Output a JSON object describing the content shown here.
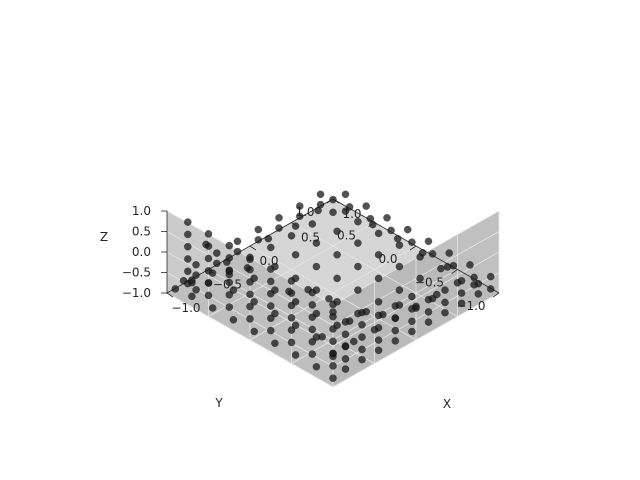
{
  "chart_data": {
    "type": "scatter",
    "projection": "3d",
    "title": "",
    "xlabel": "X",
    "ylabel": "Y",
    "zlabel": "Z",
    "xlim": [
      -1.0,
      1.0
    ],
    "ylim": [
      -1.0,
      1.0
    ],
    "zlim": [
      -1.0,
      1.0
    ],
    "x_ticks": [
      "−1.0",
      "−0.5",
      "0.0",
      "0.5",
      "1.0"
    ],
    "y_ticks": [
      "−1.0",
      "−0.5",
      "0.0",
      "0.5",
      "1.0"
    ],
    "z_ticks": [
      "−1.0",
      "−0.5",
      "0.0",
      "0.5",
      "1.0"
    ],
    "x_tick_values": [
      -1.0,
      -0.5,
      0.0,
      0.5,
      1.0
    ],
    "y_tick_values": [
      -1.0,
      -0.5,
      0.0,
      0.5,
      1.0
    ],
    "z_tick_values": [
      -1.0,
      -0.5,
      0.0,
      0.5,
      1.0
    ],
    "grid": true,
    "view": {
      "elev": 45,
      "azim": 45
    },
    "pane_color": "#b5b5b5",
    "point_color": "#1a1a1a",
    "point_alpha": 0.75,
    "series": [
      {
        "points": [
          [
            -0.95,
            -0.95,
            -0.9
          ],
          [
            -0.8,
            -0.95,
            -0.85
          ],
          [
            -0.6,
            -0.95,
            -0.85
          ],
          [
            -0.4,
            -0.95,
            -0.85
          ],
          [
            -0.2,
            -0.95,
            -0.85
          ],
          [
            0.0,
            -0.95,
            -0.85
          ],
          [
            0.2,
            -0.95,
            -0.85
          ],
          [
            0.4,
            -0.95,
            -0.85
          ],
          [
            0.6,
            -0.95,
            -0.85
          ],
          [
            0.8,
            -0.95,
            -0.85
          ],
          [
            0.95,
            -0.95,
            -0.9
          ],
          [
            -0.95,
            -0.75,
            -0.85
          ],
          [
            -0.75,
            -0.75,
            -0.75
          ],
          [
            -0.5,
            -0.75,
            -0.75
          ],
          [
            -0.25,
            -0.75,
            -0.75
          ],
          [
            0.0,
            -0.75,
            -0.75
          ],
          [
            0.25,
            -0.75,
            -0.75
          ],
          [
            0.5,
            -0.75,
            -0.75
          ],
          [
            0.75,
            -0.75,
            -0.75
          ],
          [
            0.95,
            -0.75,
            -0.85
          ],
          [
            -0.95,
            -0.5,
            -0.85
          ],
          [
            -0.7,
            -0.5,
            -0.7
          ],
          [
            -0.45,
            -0.5,
            -0.7
          ],
          [
            -0.2,
            -0.5,
            -0.7
          ],
          [
            0.05,
            -0.5,
            -0.7
          ],
          [
            0.3,
            -0.5,
            -0.7
          ],
          [
            0.55,
            -0.5,
            -0.7
          ],
          [
            0.8,
            -0.5,
            -0.75
          ],
          [
            0.95,
            -0.5,
            -0.85
          ],
          [
            -0.95,
            -0.25,
            -0.85
          ],
          [
            -0.7,
            -0.25,
            -0.7
          ],
          [
            -0.45,
            -0.25,
            -0.7
          ],
          [
            -0.2,
            -0.25,
            -0.7
          ],
          [
            0.05,
            -0.25,
            -0.7
          ],
          [
            0.3,
            -0.25,
            -0.7
          ],
          [
            0.55,
            -0.25,
            -0.7
          ],
          [
            0.8,
            -0.25,
            -0.75
          ],
          [
            0.95,
            -0.25,
            -0.85
          ],
          [
            -0.95,
            0.0,
            -0.85
          ],
          [
            -0.7,
            0.0,
            -0.7
          ],
          [
            -0.45,
            0.0,
            -0.7
          ],
          [
            -0.2,
            0.0,
            -0.7
          ],
          [
            0.05,
            0.0,
            -0.7
          ],
          [
            0.3,
            0.0,
            -0.7
          ],
          [
            0.55,
            0.0,
            -0.7
          ],
          [
            0.8,
            0.0,
            -0.75
          ],
          [
            0.95,
            0.0,
            -0.85
          ],
          [
            -0.95,
            0.25,
            -0.85
          ],
          [
            -0.7,
            0.25,
            -0.7
          ],
          [
            -0.45,
            0.25,
            -0.7
          ],
          [
            -0.2,
            0.25,
            -0.7
          ],
          [
            0.05,
            0.25,
            -0.7
          ],
          [
            0.3,
            0.25,
            -0.7
          ],
          [
            0.55,
            0.25,
            -0.7
          ],
          [
            0.8,
            0.25,
            -0.75
          ],
          [
            0.95,
            0.25,
            -0.85
          ],
          [
            -0.95,
            0.5,
            -0.85
          ],
          [
            -0.7,
            0.5,
            -0.7
          ],
          [
            -0.45,
            0.5,
            -0.7
          ],
          [
            -0.2,
            0.5,
            -0.7
          ],
          [
            0.05,
            0.5,
            -0.7
          ],
          [
            0.3,
            0.5,
            -0.7
          ],
          [
            0.55,
            0.5,
            -0.7
          ],
          [
            0.8,
            0.5,
            -0.75
          ],
          [
            0.95,
            0.5,
            -0.85
          ],
          [
            -0.95,
            0.75,
            -0.85
          ],
          [
            -0.75,
            0.75,
            -0.75
          ],
          [
            -0.5,
            0.75,
            -0.75
          ],
          [
            -0.25,
            0.75,
            -0.75
          ],
          [
            0.0,
            0.75,
            -0.75
          ],
          [
            0.25,
            0.75,
            -0.75
          ],
          [
            0.5,
            0.75,
            -0.75
          ],
          [
            0.75,
            0.75,
            -0.75
          ],
          [
            0.95,
            0.75,
            -0.85
          ],
          [
            -0.95,
            0.95,
            -0.9
          ],
          [
            -0.7,
            0.95,
            -0.85
          ],
          [
            -0.45,
            0.95,
            -0.85
          ],
          [
            -0.2,
            0.95,
            -0.85
          ],
          [
            0.05,
            0.95,
            -0.85
          ],
          [
            0.3,
            0.95,
            -0.85
          ],
          [
            0.55,
            0.95,
            -0.85
          ],
          [
            0.8,
            0.95,
            -0.85
          ],
          [
            0.95,
            0.95,
            -0.9
          ],
          [
            -0.95,
            -0.95,
            -0.6
          ],
          [
            -0.95,
            -0.95,
            -0.3
          ],
          [
            -0.95,
            -0.95,
            0.0
          ],
          [
            -0.95,
            -0.95,
            0.3
          ],
          [
            -0.95,
            -0.95,
            0.6
          ],
          [
            -0.95,
            -0.95,
            0.9
          ],
          [
            -0.95,
            -0.7,
            -0.6
          ],
          [
            -0.95,
            -0.7,
            -0.3
          ],
          [
            -0.95,
            -0.7,
            0.0
          ],
          [
            -0.95,
            -0.7,
            0.3
          ],
          [
            -0.95,
            -0.7,
            0.6
          ],
          [
            -0.95,
            -0.7,
            0.9
          ],
          [
            -0.95,
            -0.45,
            -0.6
          ],
          [
            -0.95,
            -0.45,
            -0.3
          ],
          [
            -0.95,
            -0.45,
            0.0
          ],
          [
            -0.95,
            -0.45,
            0.3
          ],
          [
            -0.95,
            -0.45,
            0.6
          ],
          [
            -0.95,
            -0.45,
            0.9
          ],
          [
            -0.95,
            -0.2,
            -0.6
          ],
          [
            -0.95,
            -0.2,
            -0.3
          ],
          [
            -0.95,
            -0.2,
            0.0
          ],
          [
            -0.95,
            -0.2,
            0.3
          ],
          [
            -0.95,
            -0.2,
            0.6
          ],
          [
            -0.95,
            -0.2,
            0.9
          ],
          [
            -0.95,
            0.05,
            -0.6
          ],
          [
            -0.95,
            0.05,
            -0.3
          ],
          [
            -0.95,
            0.05,
            0.0
          ],
          [
            -0.95,
            0.05,
            0.3
          ],
          [
            -0.95,
            0.05,
            0.6
          ],
          [
            -0.95,
            0.05,
            0.9
          ],
          [
            -0.95,
            0.3,
            -0.6
          ],
          [
            -0.95,
            0.3,
            -0.3
          ],
          [
            -0.95,
            0.3,
            0.0
          ],
          [
            -0.95,
            0.3,
            0.3
          ],
          [
            -0.95,
            0.3,
            0.6
          ],
          [
            -0.95,
            0.3,
            0.9
          ],
          [
            -0.95,
            0.55,
            -0.6
          ],
          [
            -0.95,
            0.55,
            -0.3
          ],
          [
            -0.95,
            0.55,
            0.0
          ],
          [
            -0.95,
            0.55,
            0.3
          ],
          [
            -0.95,
            0.55,
            0.6
          ],
          [
            -0.95,
            0.55,
            0.9
          ],
          [
            -0.95,
            0.8,
            -0.6
          ],
          [
            -0.95,
            0.8,
            -0.3
          ],
          [
            -0.95,
            0.8,
            0.0
          ],
          [
            -0.95,
            0.8,
            0.3
          ],
          [
            -0.95,
            0.8,
            0.6
          ],
          [
            -0.95,
            0.8,
            0.9
          ],
          [
            -0.8,
            -0.95,
            -0.6
          ],
          [
            -0.8,
            -0.95,
            -0.3
          ],
          [
            -0.8,
            -0.95,
            0.0
          ],
          [
            -0.8,
            -0.95,
            0.3
          ],
          [
            -0.6,
            -0.95,
            -0.6
          ],
          [
            -0.6,
            -0.95,
            -0.3
          ],
          [
            -0.6,
            -0.95,
            0.0
          ],
          [
            -0.6,
            -0.95,
            0.3
          ],
          [
            -0.4,
            -0.95,
            -0.6
          ],
          [
            -0.4,
            -0.95,
            -0.3
          ],
          [
            -0.4,
            -0.95,
            0.0
          ],
          [
            -0.2,
            -0.95,
            -0.6
          ],
          [
            -0.2,
            -0.95,
            -0.3
          ],
          [
            -0.2,
            -0.95,
            0.0
          ],
          [
            0.0,
            -0.95,
            -0.6
          ],
          [
            0.0,
            -0.95,
            -0.3
          ],
          [
            0.0,
            -0.95,
            0.0
          ],
          [
            0.2,
            -0.95,
            -0.6
          ],
          [
            0.2,
            -0.95,
            -0.3
          ],
          [
            0.4,
            -0.95,
            -0.6
          ],
          [
            0.4,
            -0.95,
            -0.3
          ],
          [
            0.6,
            -0.95,
            -0.6
          ],
          [
            0.6,
            -0.95,
            -0.3
          ],
          [
            0.8,
            -0.95,
            -0.6
          ],
          [
            0.95,
            -0.95,
            -0.6
          ],
          [
            -0.9,
            -0.9,
            0.6
          ],
          [
            -0.85,
            -0.8,
            0.75
          ],
          [
            -0.9,
            -0.6,
            0.8
          ],
          [
            0.95,
            -0.7,
            -0.6
          ],
          [
            0.95,
            -0.45,
            -0.6
          ],
          [
            0.95,
            -0.2,
            -0.6
          ],
          [
            0.95,
            0.05,
            -0.6
          ],
          [
            0.95,
            0.3,
            -0.6
          ],
          [
            0.95,
            0.55,
            -0.6
          ],
          [
            0.95,
            0.8,
            -0.6
          ],
          [
            -0.7,
            0.95,
            -0.6
          ],
          [
            -0.45,
            0.95,
            -0.6
          ],
          [
            -0.2,
            0.95,
            -0.6
          ],
          [
            0.05,
            0.95,
            -0.6
          ],
          [
            0.3,
            0.95,
            -0.6
          ],
          [
            0.55,
            0.95,
            -0.6
          ],
          [
            0.8,
            0.95,
            -0.6
          ],
          [
            -0.9,
            0.9,
            -0.7
          ],
          [
            -0.85,
            0.85,
            -0.75
          ],
          [
            -0.8,
            0.9,
            -0.8
          ],
          [
            -0.9,
            0.75,
            -0.75
          ],
          [
            -0.6,
            0.85,
            -0.8
          ],
          [
            -0.4,
            0.88,
            -0.8
          ],
          [
            -0.55,
            0.7,
            -0.72
          ],
          [
            0.1,
            0.88,
            -0.8
          ],
          [
            0.4,
            0.85,
            -0.8
          ],
          [
            0.7,
            0.88,
            -0.8
          ],
          [
            0.85,
            0.7,
            -0.78
          ],
          [
            0.88,
            0.4,
            -0.8
          ],
          [
            0.88,
            0.1,
            -0.8
          ],
          [
            0.88,
            -0.2,
            -0.8
          ],
          [
            0.88,
            -0.5,
            -0.8
          ],
          [
            0.85,
            -0.85,
            -0.8
          ],
          [
            -0.85,
            -0.85,
            -0.6
          ],
          [
            -0.75,
            -0.9,
            -0.4
          ],
          [
            -0.88,
            -0.75,
            -0.2
          ],
          [
            -0.88,
            -0.35,
            0.45
          ],
          [
            -0.88,
            0.15,
            0.45
          ],
          [
            -0.88,
            0.65,
            0.45
          ],
          [
            -0.7,
            -0.9,
            0.15
          ],
          [
            -0.5,
            -0.9,
            0.15
          ],
          [
            -0.3,
            -0.9,
            -0.15
          ],
          [
            -0.1,
            -0.9,
            -0.15
          ],
          [
            0.1,
            -0.9,
            -0.45
          ],
          [
            0.3,
            -0.9,
            -0.45
          ]
        ]
      }
    ]
  }
}
